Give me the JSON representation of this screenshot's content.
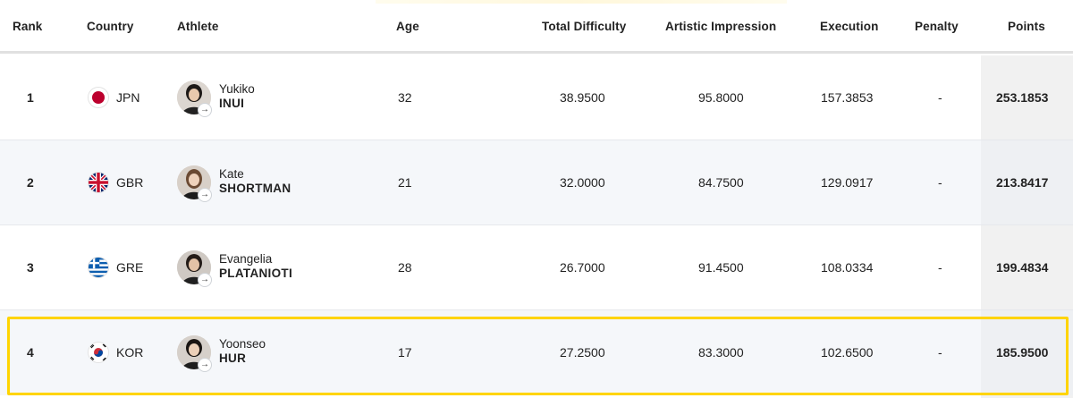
{
  "columns": {
    "rank": "Rank",
    "country": "Country",
    "athlete": "Athlete",
    "age": "Age",
    "total_difficulty": "Total Difficulty",
    "artistic_impression": "Artistic Impression",
    "execution": "Execution",
    "penalty": "Penalty",
    "points": "Points"
  },
  "rows": [
    {
      "rank": "1",
      "country": "JPN",
      "first": "Yukiko",
      "last": "INUI",
      "age": "32",
      "total_difficulty": "38.9500",
      "artistic_impression": "95.8000",
      "execution": "157.3853",
      "penalty": "-",
      "points": "253.1853",
      "flag": "japan-flag-icon"
    },
    {
      "rank": "2",
      "country": "GBR",
      "first": "Kate",
      "last": "SHORTMAN",
      "age": "21",
      "total_difficulty": "32.0000",
      "artistic_impression": "84.7500",
      "execution": "129.0917",
      "penalty": "-",
      "points": "213.8417",
      "flag": "uk-flag-icon"
    },
    {
      "rank": "3",
      "country": "GRE",
      "first": "Evangelia",
      "last": "PLATANIOTI",
      "age": "28",
      "total_difficulty": "26.7000",
      "artistic_impression": "91.4500",
      "execution": "108.0334",
      "penalty": "-",
      "points": "199.4834",
      "flag": "greece-flag-icon"
    },
    {
      "rank": "4",
      "country": "KOR",
      "first": "Yoonseo",
      "last": "HUR",
      "age": "17",
      "total_difficulty": "27.2500",
      "artistic_impression": "83.3000",
      "execution": "102.6500",
      "penalty": "-",
      "points": "185.9500",
      "flag": "korea-flag-icon"
    }
  ],
  "colors": {
    "highlight": "#ffd400",
    "row_alt": "#f5f7fa",
    "points_bg": "#f1f1f1",
    "japan_red": "#bc002d"
  }
}
